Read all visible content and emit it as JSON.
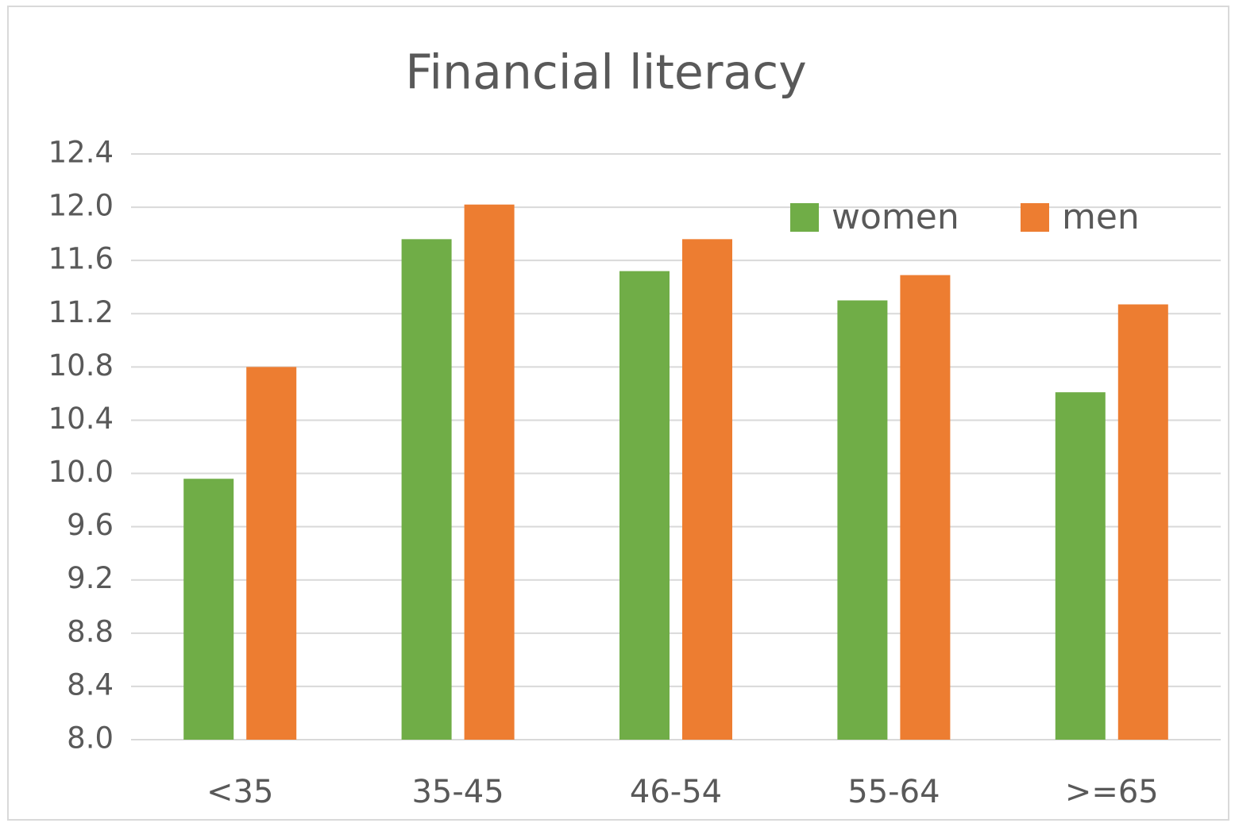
{
  "chart_data": {
    "type": "bar",
    "title": "Financial literacy",
    "categories": [
      "<35",
      "35-45",
      "46-54",
      "55-64",
      ">=65"
    ],
    "series": [
      {
        "name": "women",
        "color": "#70ad47",
        "values": [
          9.96,
          11.76,
          11.52,
          11.3,
          10.61
        ]
      },
      {
        "name": "men",
        "color": "#ed7d31",
        "values": [
          10.8,
          12.02,
          11.76,
          11.49,
          11.27
        ]
      }
    ],
    "ylim": [
      8.0,
      12.4
    ],
    "yticks": [
      {
        "value": 8.0,
        "label": "8.0"
      },
      8.4,
      8.8,
      9.2,
      9.6,
      {
        "value": 10.0,
        "label": "10.0"
      },
      10.4,
      10.8,
      11.2,
      11.6,
      {
        "value": 12.0,
        "label": "12.0"
      },
      12.4
    ],
    "grid": true,
    "legend": "top-right"
  }
}
